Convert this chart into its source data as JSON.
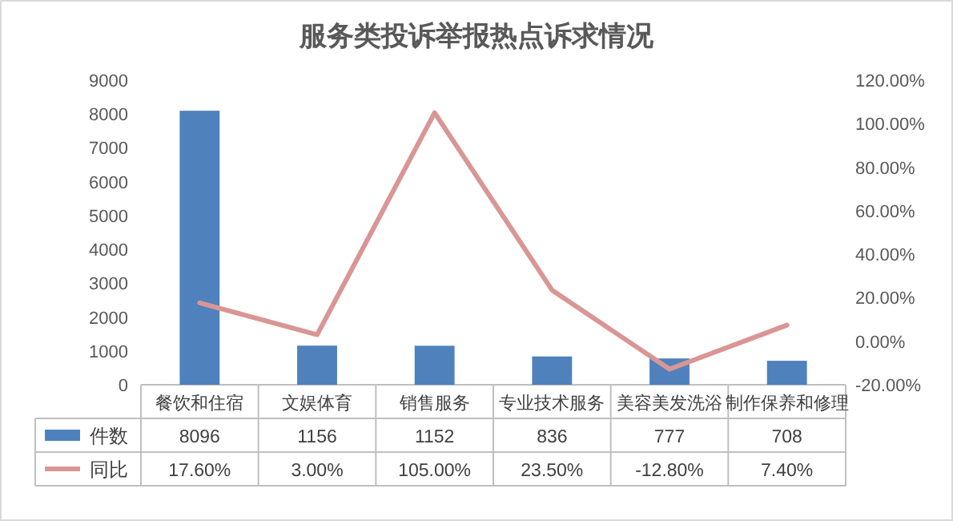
{
  "chart_data": {
    "type": "bar",
    "title": "服务类投诉举报热点诉求情况",
    "categories": [
      "餐饮和住宿",
      "文娱体育",
      "销售服务",
      "专业技术服务",
      "美容美发洗浴",
      "制作保养和修理"
    ],
    "series": [
      {
        "name": "件数",
        "color": "#4f81bd",
        "values": [
          8096,
          1156,
          1152,
          836,
          777,
          708
        ],
        "value_labels": [
          "8096",
          "1156",
          "1152",
          "836",
          "777",
          "708"
        ]
      },
      {
        "name": "同比",
        "type": "line",
        "axis": "y2",
        "color": "#d99694",
        "values": [
          17.6,
          3.0,
          105.0,
          23.5,
          -12.8,
          7.4
        ],
        "value_labels": [
          "17.60%",
          "3.00%",
          "105.00%",
          "23.50%",
          "-12.80%",
          "7.40%"
        ]
      }
    ],
    "ylim": [
      0,
      9000
    ],
    "yticks": [
      0,
      1000,
      2000,
      3000,
      4000,
      5000,
      6000,
      7000,
      8000,
      9000
    ],
    "y2lim": [
      -20,
      120
    ],
    "y2ticks": [
      {
        "value": -20,
        "label": "-20.00%"
      },
      {
        "value": 0,
        "label": "0.00%"
      },
      {
        "value": 20,
        "label": "20.00%"
      },
      {
        "value": 40,
        "label": "40.00%"
      },
      {
        "value": 60,
        "label": "60.00%"
      },
      {
        "value": 80,
        "label": "80.00%"
      },
      {
        "value": 100,
        "label": "100.00%"
      },
      {
        "value": 120,
        "label": "120.00%"
      }
    ],
    "legend": "bottom"
  }
}
